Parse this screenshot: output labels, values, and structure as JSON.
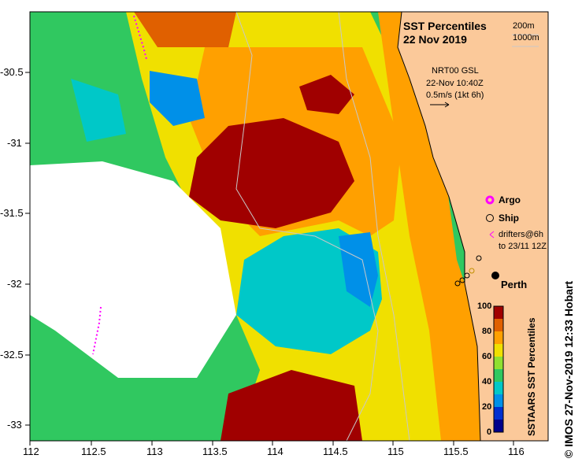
{
  "title_line1": "SST Percentiles",
  "title_line2": "22 Nov 2019",
  "depth_legend": {
    "contour_200": "200m",
    "contour_1000": "1000m"
  },
  "current_info": {
    "line1": "NRT00 GSL",
    "line2": "22-Nov 10:40Z",
    "line3": "0.5m/s (1kt 6h)"
  },
  "legend": {
    "argo": "Argo",
    "ship": "Ship",
    "drifters_line1": "drifters@6h",
    "drifters_line2": "to 23/11 12Z"
  },
  "place_label": "Perth",
  "colorbar": {
    "label": "SSTAARS SST Percentiles",
    "ticks": [
      "100",
      "80",
      "60",
      "40",
      "20",
      "0"
    ],
    "colors": [
      "#00008b",
      "#0030d0",
      "#0090e8",
      "#00c8c8",
      "#30c860",
      "#90e030",
      "#f0e000",
      "#ffa000",
      "#e06000",
      "#a00000"
    ]
  },
  "credit": "© IMOS 27-Nov-2019 12:33 Hobart",
  "axes": {
    "x_ticks": [
      "112",
      "112.5",
      "113",
      "113.5",
      "114",
      "114.5",
      "115",
      "115.5",
      "116"
    ],
    "y_ticks": [
      "-30.5",
      "-31",
      "-31.5",
      "-32",
      "-32.5",
      "-33"
    ]
  },
  "colors": {
    "land": "#fbc99a",
    "nodata": "#ffffff"
  }
}
